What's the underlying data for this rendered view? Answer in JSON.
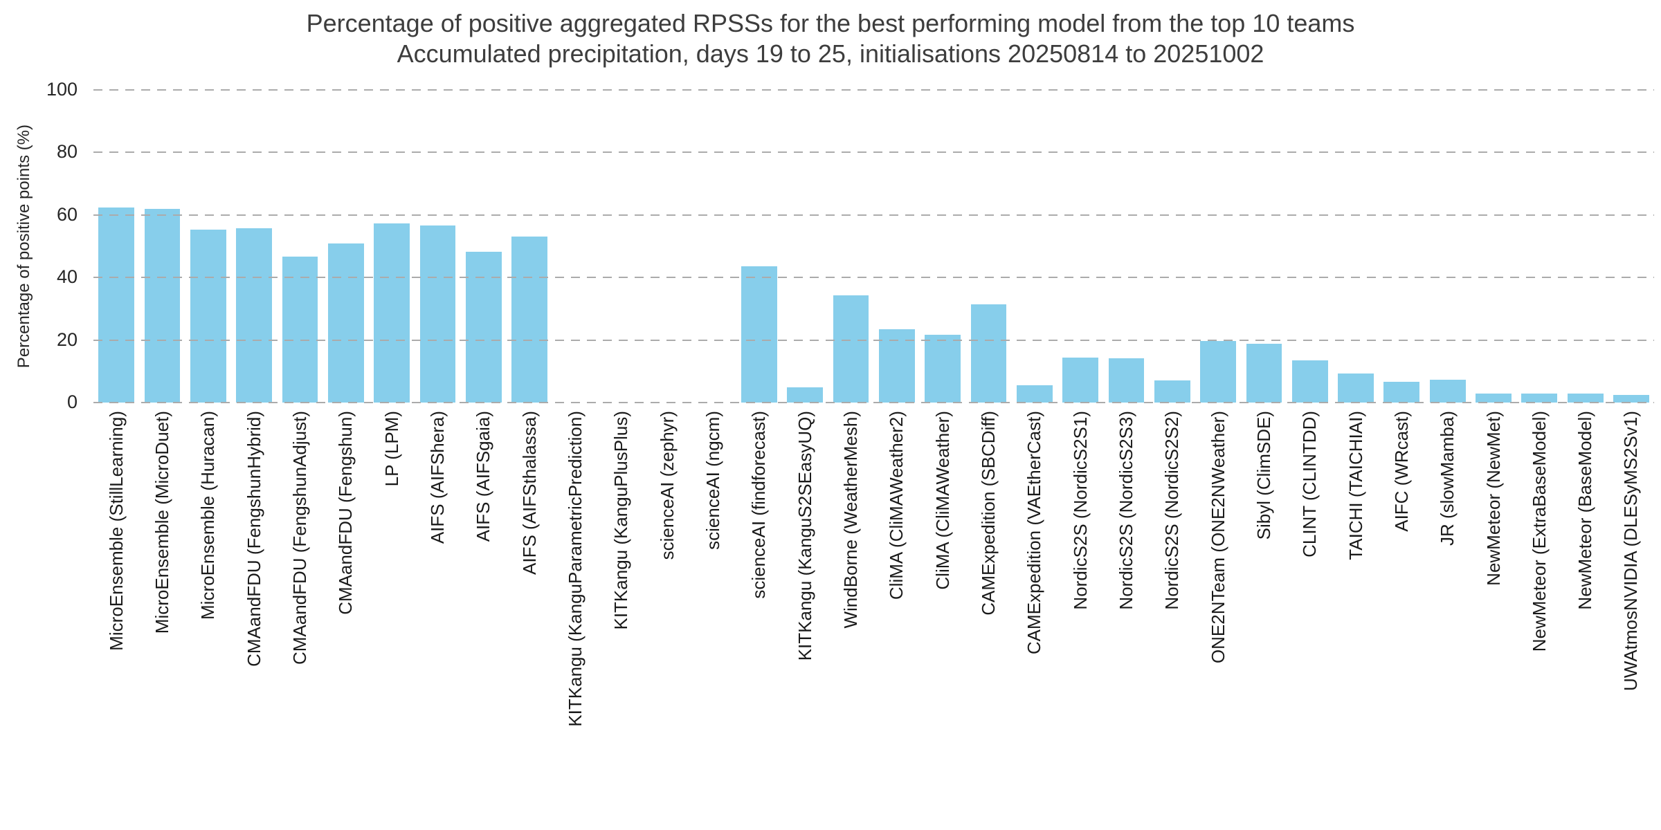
{
  "chart_data": {
    "type": "bar",
    "title": "Percentage of positive aggregated RPSSs for the best performing model from the top 10 teams",
    "subtitle": "Accumulated precipitation, days 19 to 25, initialisations 20250814 to 20251002",
    "ylabel": "Percentage of positive points (%)",
    "xlabel": "",
    "ylim": [
      0,
      100
    ],
    "yticks": [
      0,
      20,
      40,
      60,
      80,
      100
    ],
    "grid": "horizontal-dashed",
    "legend": "none",
    "bar_color": "#87CEEB",
    "gridline_color": "#ababab",
    "title_color": "#3d3d3d",
    "tick_color": "#262626",
    "categories": [
      "MicroEnsemble (StillLearning)",
      "MicroEnsemble (MicroDuet)",
      "MicroEnsemble (Huracan)",
      "CMAandFDU (FengshunHybrid)",
      "CMAandFDU (FengshunAdjust)",
      "CMAandFDU (Fengshun)",
      "LP (LPM)",
      "AIFS (AIFShera)",
      "AIFS (AIFSgaia)",
      "AIFS (AIFSthalassa)",
      "KITKangu (KanguParametricPrediction)",
      "KITKangu (KanguPlusPlus)",
      "scienceAI (zephyr)",
      "scienceAI (ngcm)",
      "scienceAI (findforecast)",
      "KITKangu (KanguS2SEasyUQ)",
      "WindBorne (WeatherMesh)",
      "CliMA (CliMAWeather2)",
      "CliMA (CliMAWeather)",
      "CAMExpedition (SBCDiff)",
      "CAMExpedition (VAEtherCast)",
      "NordicS2S (NordicS2S1)",
      "NordicS2S (NordicS2S3)",
      "NordicS2S (NordicS2S2)",
      "ONE2NTeam (ONE2NWeather)",
      "Sibyl (ClimSDE)",
      "CLINT (CLINTDD)",
      "TAICHI (TAICHIAI)",
      "AIFC (WRcast)",
      "JR (slowMamba)",
      "NewMeteor (NewMet)",
      "NewMeteor (ExtraBaseModel)",
      "NewMeteor (BaseModel)",
      "UWAtmosNVIDIA (DLESyMS2Sv1)"
    ],
    "values": [
      62.5,
      62.0,
      55.4,
      55.7,
      46.6,
      50.8,
      57.4,
      56.6,
      48.2,
      53.2,
      0,
      0,
      0,
      0,
      43.5,
      4.9,
      34.2,
      23.5,
      21.7,
      31.4,
      5.5,
      14.4,
      14.1,
      7.0,
      19.8,
      18.9,
      13.4,
      9.3,
      6.6,
      7.4,
      2.9,
      2.9,
      2.9,
      2.4
    ]
  }
}
